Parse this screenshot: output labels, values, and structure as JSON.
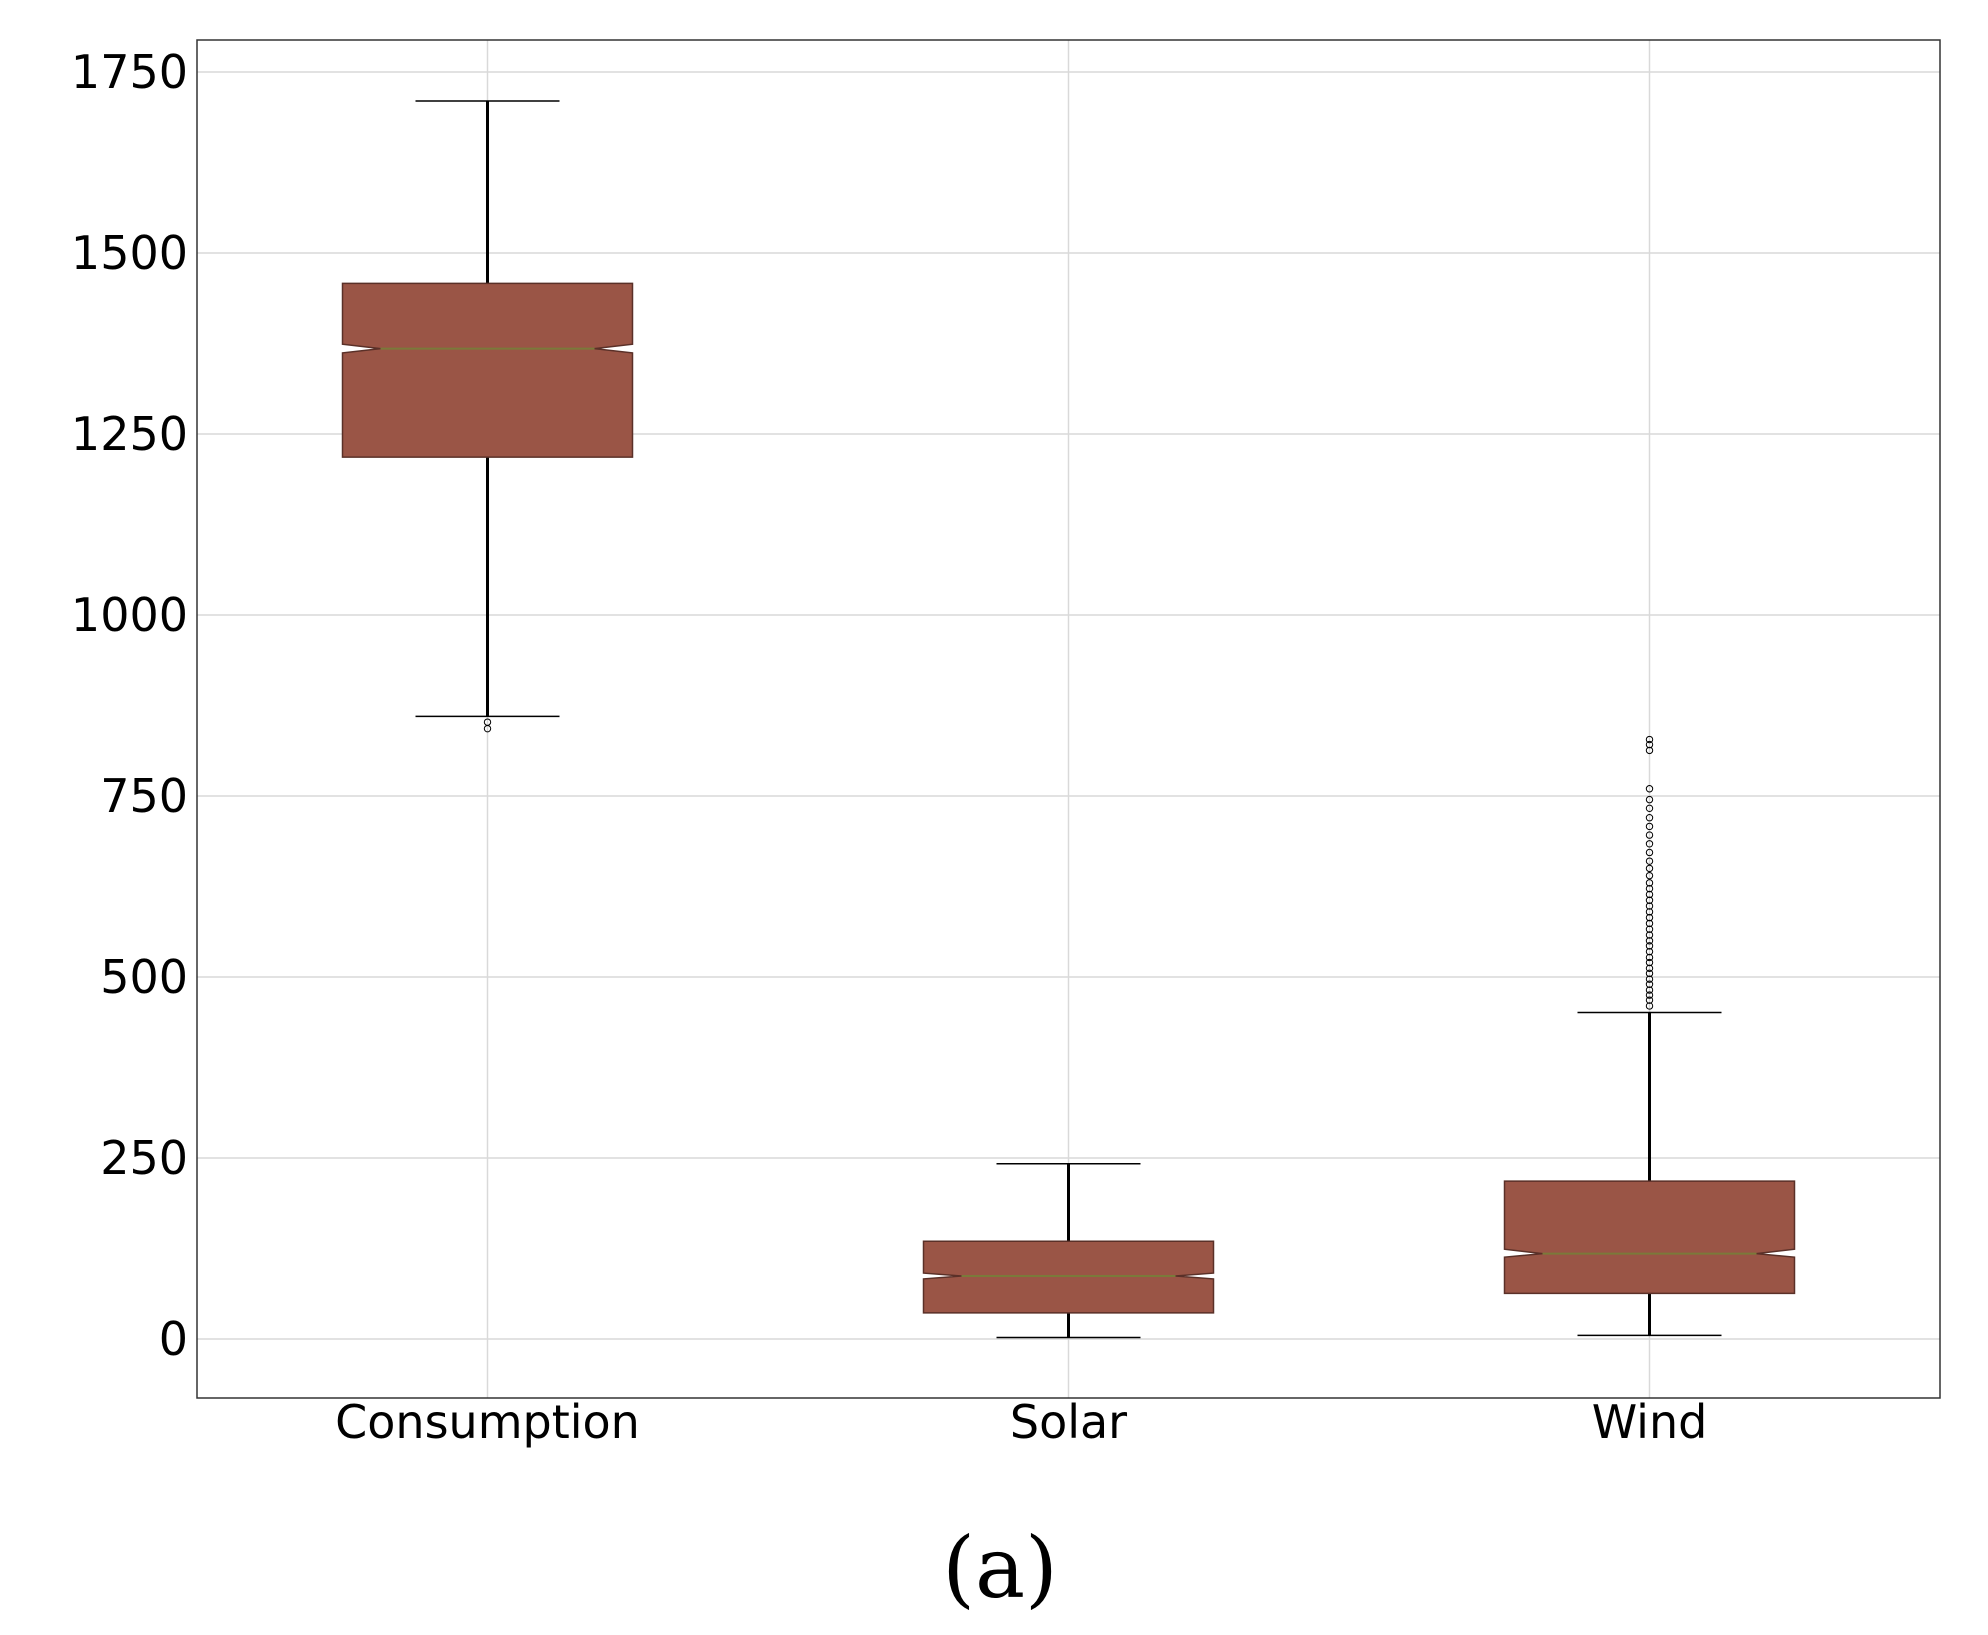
{
  "chart_data": {
    "type": "boxplot",
    "title": "",
    "xlabel": "",
    "ylabel": "",
    "caption": "(a)",
    "ylim": [
      -80,
      1790
    ],
    "yticks": [
      0,
      250,
      500,
      750,
      1000,
      1250,
      1500,
      1750
    ],
    "grid": true,
    "notched": true,
    "colors": {
      "box_fill": "#9a5546",
      "box_edge": "#5a3028",
      "median": "#7a7a3a",
      "grid": "#d9d9d9"
    },
    "categories": [
      "Consumption",
      "Solar",
      "Wind"
    ],
    "series": [
      {
        "name": "Consumption",
        "whisker_low": 860,
        "q1": 1218,
        "median": 1368,
        "q3": 1458,
        "whisker_high": 1710,
        "notch_low": 1362,
        "notch_high": 1374,
        "outliers": [
          843,
          852
        ]
      },
      {
        "name": "Solar",
        "whisker_low": 2,
        "q1": 36,
        "median": 87,
        "q3": 135,
        "whisker_high": 242,
        "notch_low": 83,
        "notch_high": 91,
        "outliers": []
      },
      {
        "name": "Wind",
        "whisker_low": 5,
        "q1": 63,
        "median": 118,
        "q3": 218,
        "whisker_high": 451,
        "notch_low": 113,
        "notch_high": 124,
        "outliers": [
          460,
          468,
          475,
          482,
          490,
          497,
          505,
          512,
          520,
          527,
          535,
          543,
          550,
          558,
          566,
          574,
          582,
          590,
          598,
          606,
          614,
          622,
          630,
          640,
          650,
          660,
          672,
          684,
          696,
          708,
          720,
          733,
          745,
          760,
          813,
          821,
          828
        ]
      }
    ]
  }
}
